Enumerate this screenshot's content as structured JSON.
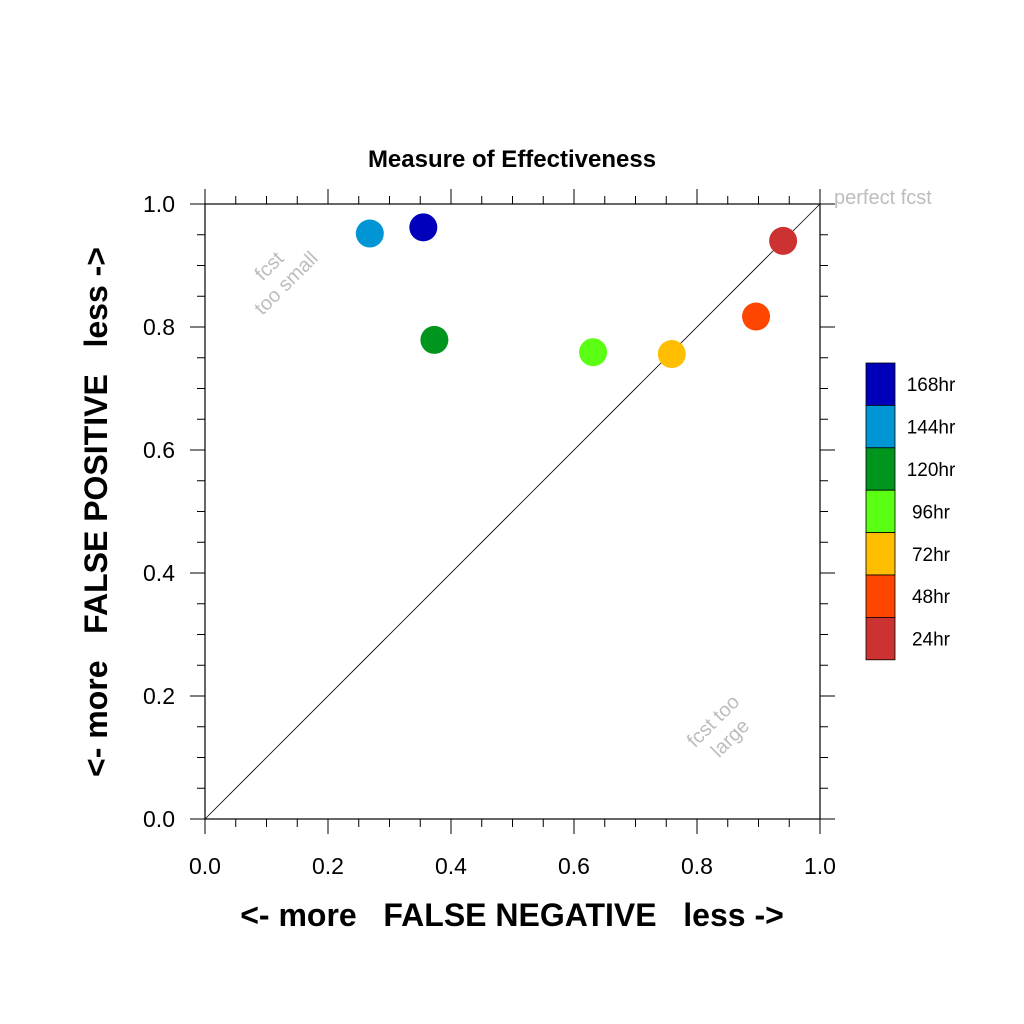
{
  "chart_data": {
    "type": "scatter",
    "title": "Measure of Effectiveness",
    "xlabel": "<- more   FALSE NEGATIVE   less ->",
    "ylabel": "<- more   FALSE POSITIVE   less ->",
    "xlim": [
      0.0,
      1.0
    ],
    "ylim": [
      0.0,
      1.0
    ],
    "xticks": [
      "0.0",
      "0.2",
      "0.4",
      "0.6",
      "0.8",
      "1.0"
    ],
    "yticks": [
      "0.0",
      "0.2",
      "0.4",
      "0.6",
      "0.8",
      "1.0"
    ],
    "grid": false,
    "diagonal_line": true,
    "annotations": {
      "perfect": "perfect fcst",
      "small_line1": "fcst",
      "small_line2": "too small",
      "large_line1": "fcst too",
      "large_line2": "large"
    },
    "legend_position": "right",
    "series": [
      {
        "name": "168hr",
        "color": "#0000bb",
        "x": 0.355,
        "y": 0.962
      },
      {
        "name": "144hr",
        "color": "#0096d6",
        "x": 0.268,
        "y": 0.952
      },
      {
        "name": "120hr",
        "color": "#00961e",
        "x": 0.373,
        "y": 0.779
      },
      {
        "name": "96hr",
        "color": "#5aff14",
        "x": 0.631,
        "y": 0.759
      },
      {
        "name": "72hr",
        "color": "#ffbe00",
        "x": 0.759,
        "y": 0.756
      },
      {
        "name": "48hr",
        "color": "#ff4600",
        "x": 0.896,
        "y": 0.817
      },
      {
        "name": "24hr",
        "color": "#cd3232",
        "x": 0.94,
        "y": 0.94
      }
    ]
  }
}
